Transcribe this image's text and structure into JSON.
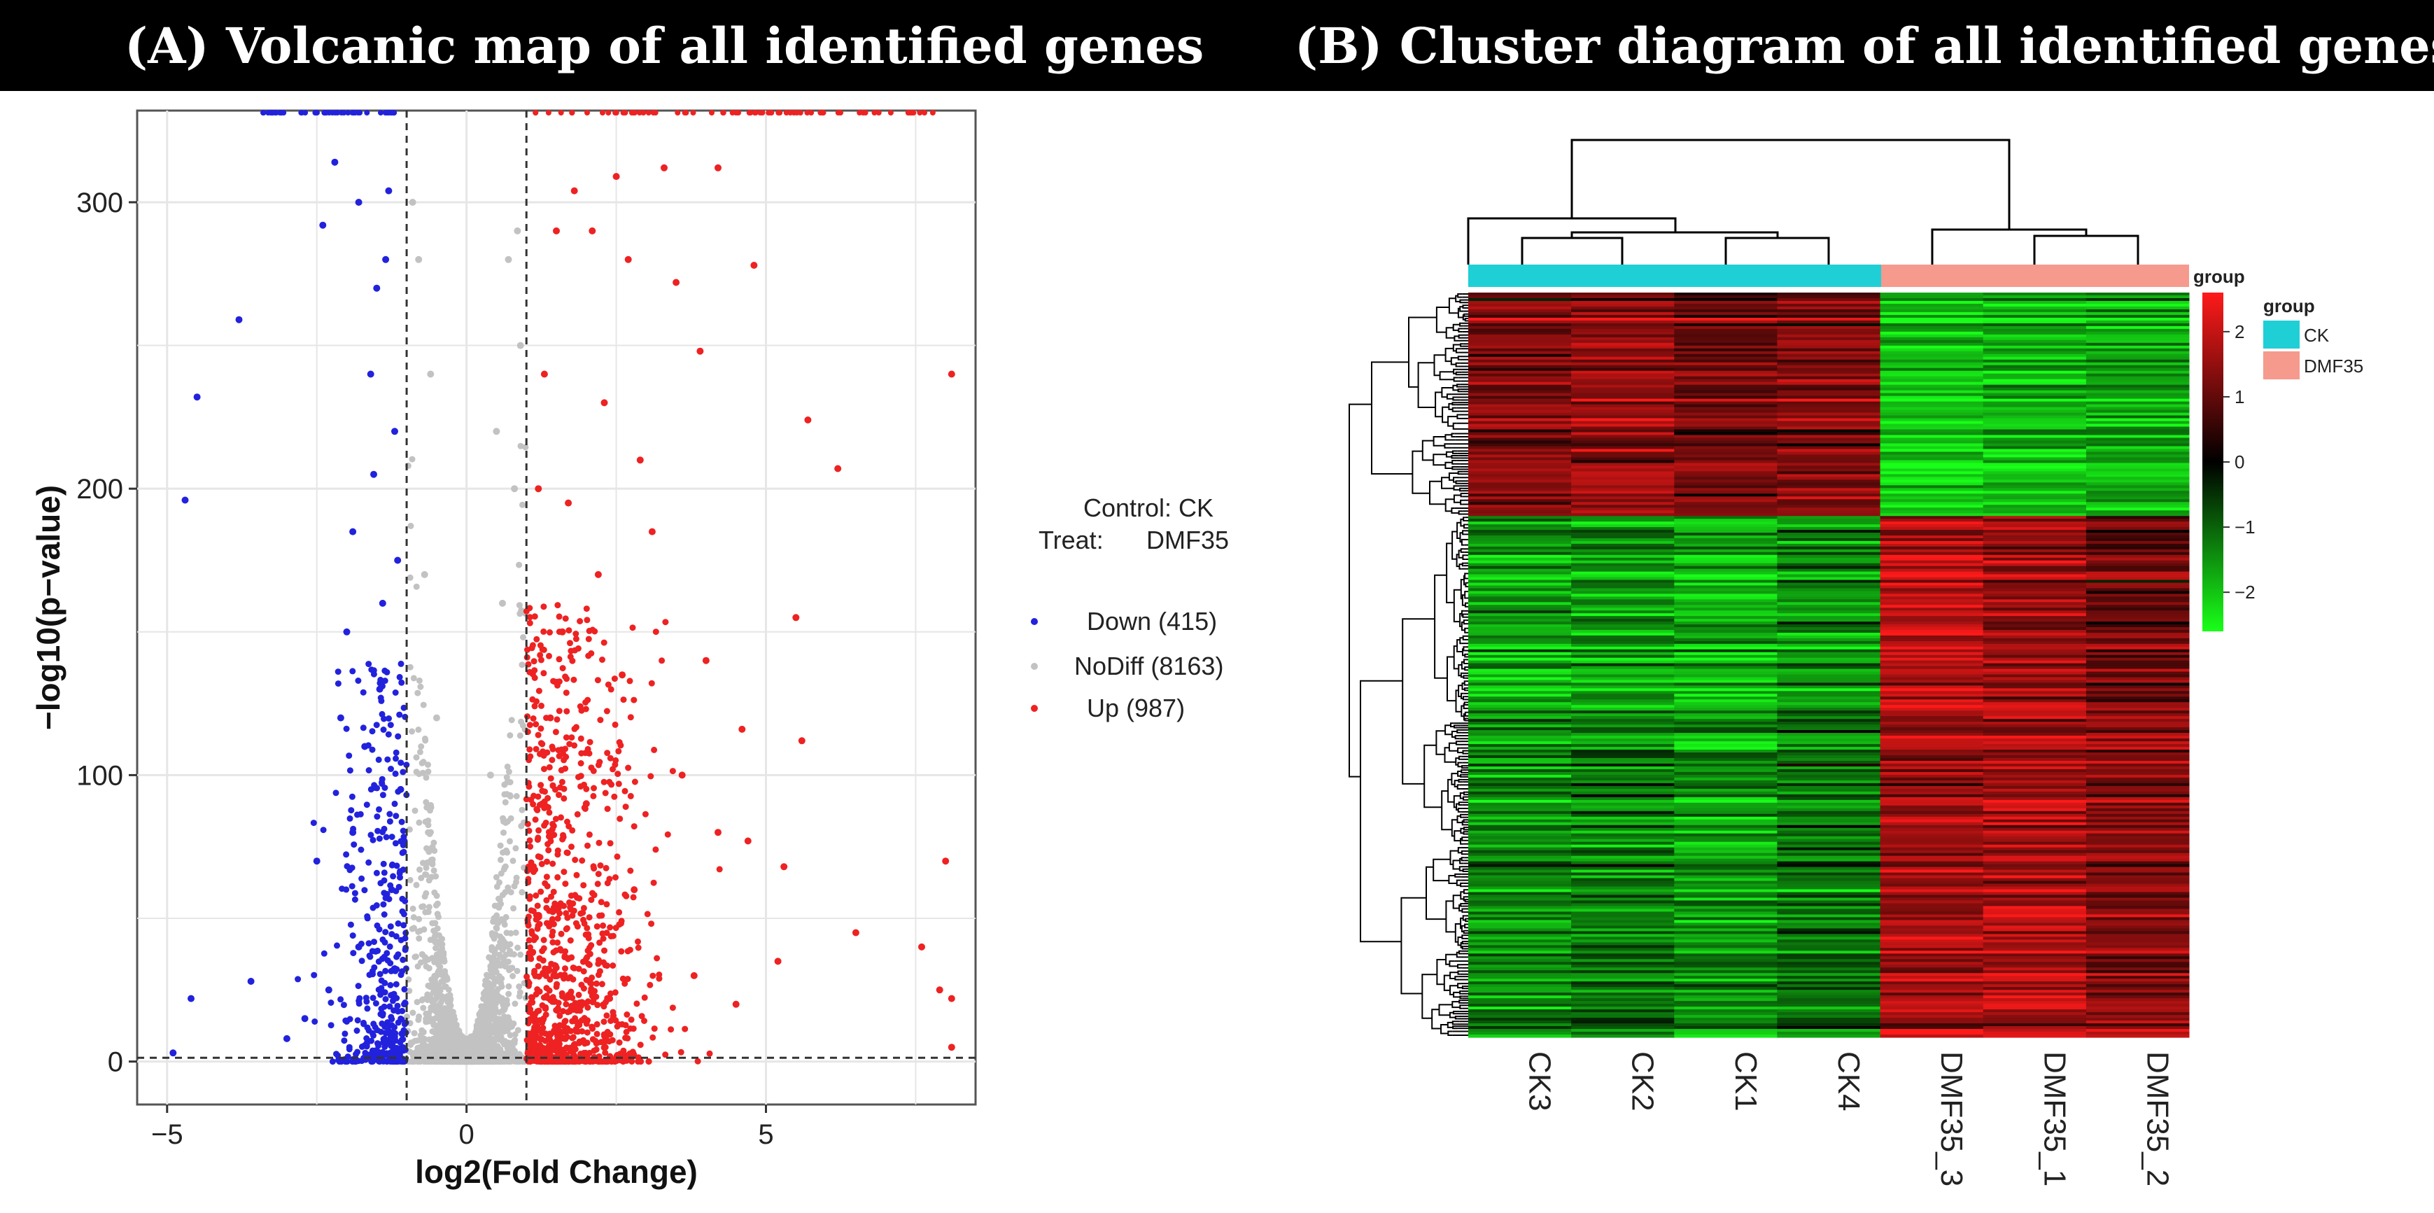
{
  "panel_a": {
    "title": "(A) Volcanic map of all identified genes"
  },
  "panel_b": {
    "title": "(B) Cluster diagram of all identified genes"
  },
  "colors": {
    "down": "#2222dd",
    "nodiff": "#c2c2c2",
    "up": "#ee2222",
    "ck": "#1fcfd6",
    "dmf35": "#f59a8d",
    "heat_high": "#ff1a1a",
    "heat_mid": "#000000",
    "heat_low": "#19ff19"
  },
  "chart_data": [
    {
      "type": "scatter",
      "title": "(A) Volcanic map of all identified genes",
      "xlabel": "log2(Fold Change)",
      "ylabel": "−log10(p−value)",
      "xlim": [
        -5.5,
        8.5
      ],
      "ylim": [
        -15,
        332
      ],
      "xticks": [
        -5,
        0,
        5
      ],
      "yticks": [
        0,
        100,
        200,
        300
      ],
      "xtick_labels": [
        "−5",
        "0",
        "5"
      ],
      "ytick_labels": [
        "0",
        "100",
        "200",
        "300"
      ],
      "thresholds": {
        "fold_change": [
          -1,
          1
        ],
        "p_value_line": 1.3
      },
      "legend": {
        "control": "Control: CK",
        "treat_label": "Treat:",
        "treat_value": "DMF35",
        "entries": [
          {
            "name": "Down (415)",
            "key": "down"
          },
          {
            "name": "NoDiff (8163)",
            "key": "nodiff"
          },
          {
            "name": "Up (987)",
            "key": "up"
          }
        ]
      },
      "series": [
        {
          "name": "Down",
          "count": 415,
          "sample_points": [
            [
              -4.7,
              196
            ],
            [
              -4.5,
              232
            ],
            [
              -3.8,
              259
            ],
            [
              -2.4,
              292
            ],
            [
              -2.2,
              314
            ],
            [
              -1.8,
              300
            ],
            [
              -1.5,
              270
            ],
            [
              -1.3,
              304
            ],
            [
              -1.6,
              240
            ],
            [
              -1.9,
              185
            ],
            [
              -2.0,
              150
            ],
            [
              -1.2,
              220
            ],
            [
              -1.4,
              160
            ],
            [
              -2.5,
              70
            ],
            [
              -3.6,
              28
            ],
            [
              -4.6,
              22
            ],
            [
              -4.9,
              3
            ],
            [
              -3.0,
              8
            ],
            [
              -2.7,
              15
            ],
            [
              -1.7,
              110
            ],
            [
              -1.1,
              95
            ],
            [
              -1.35,
              280
            ],
            [
              -1.55,
              205
            ],
            [
              -2.1,
              120
            ],
            [
              -1.25,
              60
            ],
            [
              -1.8,
              40
            ],
            [
              -2.3,
              25
            ],
            [
              -1.45,
              130
            ],
            [
              -1.9,
              80
            ],
            [
              -1.15,
              175
            ]
          ]
        },
        {
          "name": "NoDiff",
          "count": 8163,
          "sample_points": [
            [
              -0.8,
              280
            ],
            [
              -0.6,
              240
            ],
            [
              0.7,
              280
            ],
            [
              0.5,
              220
            ],
            [
              0.8,
              200
            ],
            [
              -0.7,
              170
            ],
            [
              0.6,
              160
            ],
            [
              -0.5,
              120
            ],
            [
              0.4,
              100
            ],
            [
              0.9,
              250
            ],
            [
              -0.9,
              300
            ],
            [
              0.85,
              290
            ]
          ]
        },
        {
          "name": "Up",
          "count": 987,
          "sample_points": [
            [
              1.8,
              304
            ],
            [
              2.5,
              309
            ],
            [
              3.3,
              312
            ],
            [
              4.2,
              312
            ],
            [
              2.1,
              290
            ],
            [
              4.8,
              278
            ],
            [
              3.5,
              272
            ],
            [
              8.1,
              240
            ],
            [
              5.7,
              224
            ],
            [
              6.2,
              207
            ],
            [
              1.5,
              290
            ],
            [
              2.7,
              280
            ],
            [
              3.9,
              248
            ],
            [
              1.3,
              240
            ],
            [
              2.3,
              230
            ],
            [
              2.9,
              210
            ],
            [
              1.7,
              195
            ],
            [
              3.1,
              185
            ],
            [
              5.5,
              155
            ],
            [
              4.0,
              140
            ],
            [
              4.6,
              116
            ],
            [
              5.6,
              112
            ],
            [
              4.2,
              80
            ],
            [
              4.7,
              77
            ],
            [
              5.3,
              68
            ],
            [
              8.0,
              70
            ],
            [
              5.2,
              35
            ],
            [
              7.6,
              40
            ],
            [
              6.5,
              45
            ],
            [
              7.9,
              25
            ],
            [
              8.1,
              22
            ],
            [
              8.1,
              5
            ],
            [
              2.2,
              170
            ],
            [
              1.6,
              150
            ],
            [
              2.6,
              135
            ],
            [
              1.4,
              120
            ],
            [
              3.6,
              100
            ],
            [
              2.0,
              90
            ],
            [
              1.2,
              200
            ],
            [
              2.8,
              60
            ],
            [
              3.8,
              30
            ],
            [
              4.5,
              20
            ]
          ]
        }
      ]
    },
    {
      "type": "heatmap",
      "title": "(B) Cluster diagram of all identified genes",
      "columns": [
        "CK3",
        "CK2",
        "CK1",
        "CK4",
        "DMF35_3",
        "DMF35_1",
        "DMF35_2"
      ],
      "column_groups": [
        "CK",
        "CK",
        "CK",
        "CK",
        "DMF35",
        "DMF35",
        "DMF35"
      ],
      "annotation_label": "group",
      "legend_title": "group",
      "legend_entries": [
        "CK",
        "DMF35"
      ],
      "colorbar": {
        "min": -2.6,
        "max": 2.6,
        "ticks": [
          2,
          1,
          0,
          -1,
          -2
        ],
        "tick_labels": [
          "2",
          "1",
          "0",
          "−1",
          "−2"
        ]
      },
      "row_blocks": [
        {
          "name": "block1",
          "fraction": 0.3,
          "values": [
            1.2,
            1.4,
            1.1,
            1.3,
            -2.0,
            -1.8,
            -1.7
          ]
        },
        {
          "name": "block2",
          "fraction": 0.25,
          "values": [
            -1.6,
            -1.5,
            -1.8,
            -1.4,
            1.8,
            1.5,
            1.0
          ]
        },
        {
          "name": "block3",
          "fraction": 0.45,
          "values": [
            -1.3,
            -1.2,
            -1.5,
            -1.1,
            1.6,
            1.7,
            1.3
          ]
        }
      ]
    }
  ]
}
